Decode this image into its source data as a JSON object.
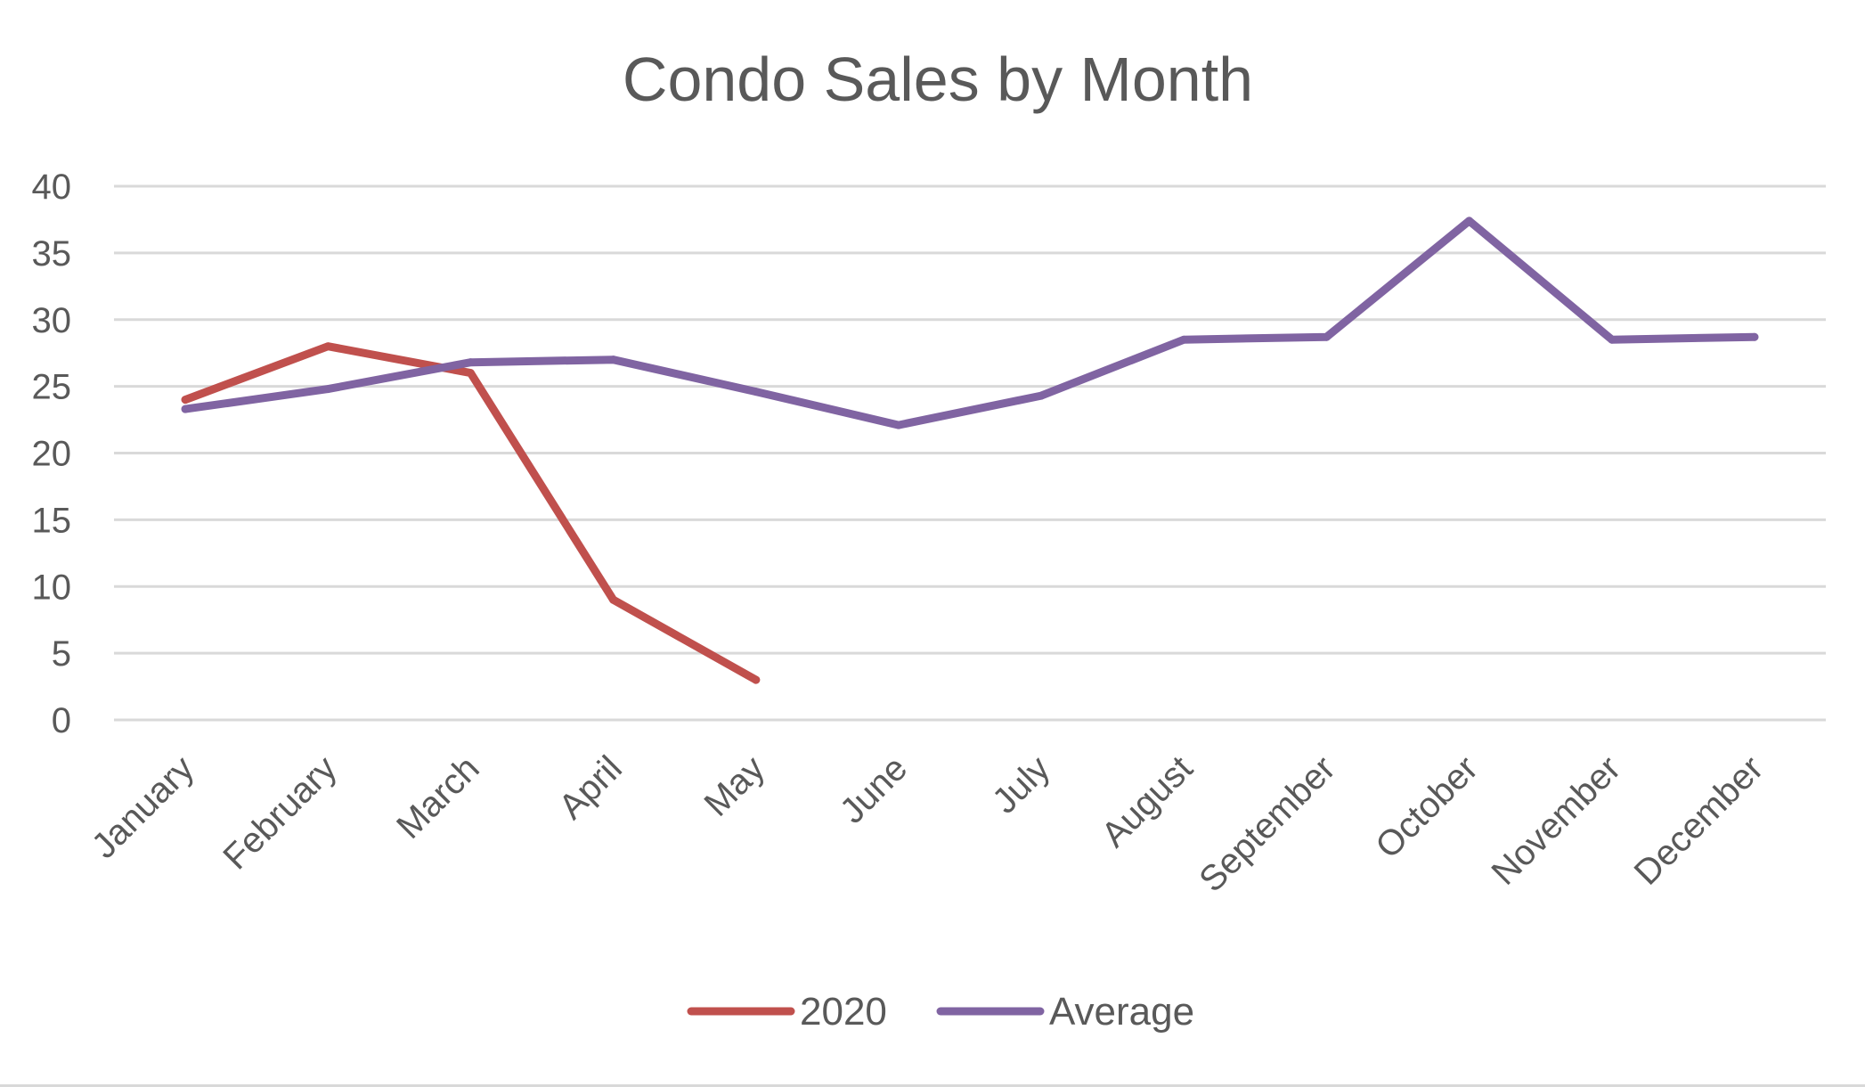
{
  "chart_data": {
    "type": "line",
    "title": "Condo Sales by Month",
    "xlabel": "",
    "ylabel": "",
    "categories": [
      "January",
      "February",
      "March",
      "April",
      "May",
      "June",
      "July",
      "August",
      "September",
      "October",
      "November",
      "December"
    ],
    "series": [
      {
        "name": "2020",
        "color": "#c0504d",
        "values": [
          24,
          28,
          26,
          9,
          3,
          null,
          null,
          null,
          null,
          null,
          null,
          null
        ]
      },
      {
        "name": "Average",
        "color": "#8064a2",
        "values": [
          23.3,
          24.8,
          26.8,
          27,
          24.6,
          22.1,
          24.3,
          28.5,
          28.7,
          37.4,
          28.5,
          28.7
        ]
      }
    ],
    "ylim": [
      0,
      40
    ],
    "yticks": [
      "0",
      "5",
      "10",
      "15",
      "20",
      "25",
      "30",
      "35",
      "40"
    ],
    "grid": true,
    "legend_position": "bottom"
  }
}
